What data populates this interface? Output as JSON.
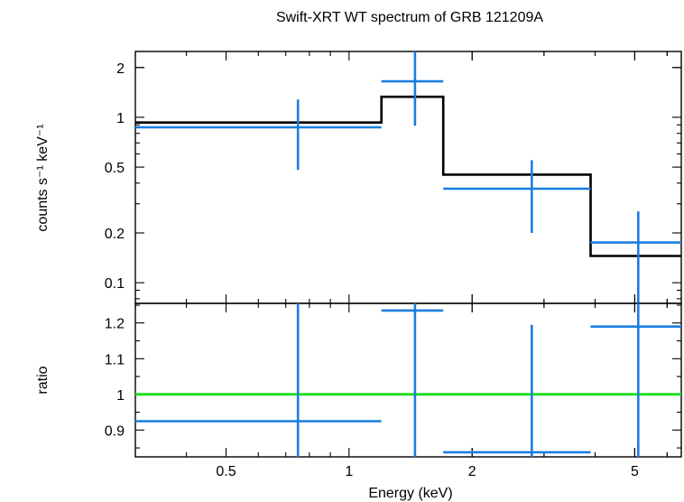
{
  "chart_data": [
    {
      "type": "step",
      "title": "Swift-XRT WT spectrum of GRB 121209A",
      "ylabel": "counts s⁻¹ keV⁻¹",
      "xlabel": "",
      "xscale": "log",
      "yscale": "log",
      "xlim": [
        0.3,
        6.5
      ],
      "ylim": [
        0.075,
        2.5
      ],
      "x_ticks": [
        0.5,
        1,
        2,
        5
      ],
      "y_ticks": [
        "0.1",
        "0.2",
        "0.5",
        "1",
        "2"
      ],
      "y_tick_values": [
        0.1,
        0.2,
        0.5,
        1,
        2
      ],
      "series": [
        {
          "kind": "data",
          "color": "#1a7ee0",
          "points": [
            {
              "x": 0.75,
              "xlo": 0.3,
              "xhi": 1.2,
              "y": 0.87,
              "ylo": 0.48,
              "yhi": 1.28
            },
            {
              "x": 1.45,
              "xlo": 1.2,
              "xhi": 1.7,
              "y": 1.65,
              "ylo": 0.89,
              "yhi": 2.5
            },
            {
              "x": 2.8,
              "xlo": 1.7,
              "xhi": 3.9,
              "y": 0.37,
              "ylo": 0.2,
              "yhi": 0.55
            },
            {
              "x": 5.1,
              "xlo": 3.9,
              "xhi": 6.5,
              "y": 0.175,
              "ylo": 0.075,
              "yhi": 0.27
            }
          ]
        },
        {
          "kind": "model",
          "color": "#000000",
          "steps": [
            {
              "xlo": 0.3,
              "xhi": 1.2,
              "y": 0.93
            },
            {
              "xlo": 1.2,
              "xhi": 1.7,
              "y": 1.33
            },
            {
              "xlo": 1.7,
              "xhi": 3.9,
              "y": 0.45
            },
            {
              "xlo": 3.9,
              "xhi": 6.5,
              "y": 0.145
            }
          ]
        }
      ]
    },
    {
      "type": "scatter",
      "title": "",
      "ylabel": "ratio",
      "xlabel": "Energy (keV)",
      "xscale": "log",
      "yscale": "linear",
      "xlim": [
        0.3,
        6.5
      ],
      "ylim": [
        0.825,
        1.255
      ],
      "x_ticks": [
        "0.5",
        "1",
        "2",
        "5"
      ],
      "x_tick_values": [
        0.5,
        1,
        2,
        5
      ],
      "y_ticks": [
        "0.9",
        "1",
        "1.1",
        "1.2"
      ],
      "y_tick_values": [
        0.9,
        1.0,
        1.1,
        1.2
      ],
      "reference_line": {
        "y": 1.0,
        "color": "#22dd22"
      },
      "series": [
        {
          "kind": "data",
          "color": "#1a7ee0",
          "points": [
            {
              "x": 0.75,
              "xlo": 0.3,
              "xhi": 1.2,
              "y": 0.925,
              "ylo": 0.825,
              "yhi": 1.255
            },
            {
              "x": 1.45,
              "xlo": 1.2,
              "xhi": 1.7,
              "y": 1.235,
              "ylo": 0.825,
              "yhi": 1.255
            },
            {
              "x": 2.8,
              "xlo": 1.7,
              "xhi": 3.9,
              "y": 0.838,
              "ylo": 0.825,
              "yhi": 1.195
            },
            {
              "x": 5.1,
              "xlo": 3.9,
              "xhi": 6.5,
              "y": 1.19,
              "ylo": 0.825,
              "yhi": 1.255
            }
          ]
        }
      ]
    }
  ]
}
